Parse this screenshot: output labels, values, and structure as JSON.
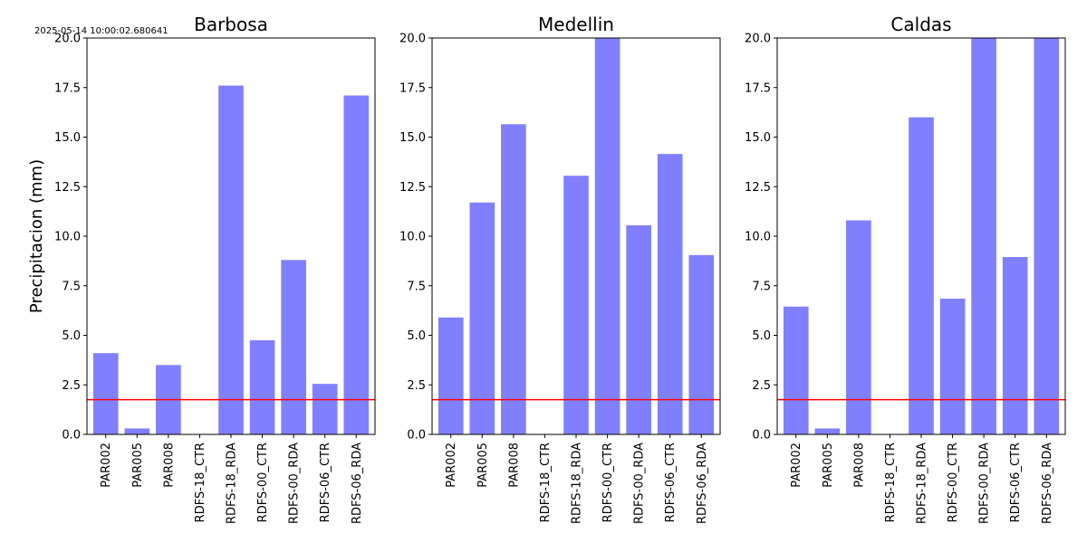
{
  "timestamp": "2025-05-14 10:00:02.680641",
  "colors": {
    "bar": "#8080ff",
    "threshold": "#ff0000",
    "axis": "#000000"
  },
  "chart_data": [
    {
      "type": "bar",
      "title": "Barbosa",
      "ylabel": "Precipitacion (mm)",
      "xlabel": "",
      "ylim": [
        0,
        20
      ],
      "yticks": [
        "0.0",
        "2.5",
        "5.0",
        "7.5",
        "10.0",
        "12.5",
        "15.0",
        "17.5",
        "20.0"
      ],
      "categories": [
        "PAR002",
        "PAR005",
        "PAR008",
        "RDFS-18_CTR",
        "RDFS-18_RDA",
        "RDFS-00_CTR",
        "RDFS-00_RDA",
        "RDFS-06_CTR",
        "RDFS-06_RDA"
      ],
      "values": [
        4.1,
        0.3,
        3.5,
        0.0,
        17.6,
        4.75,
        8.8,
        2.55,
        17.1
      ],
      "threshold": 1.75
    },
    {
      "type": "bar",
      "title": "Medellin",
      "ylabel": "",
      "xlabel": "",
      "ylim": [
        0,
        20
      ],
      "yticks": [
        "0.0",
        "2.5",
        "5.0",
        "7.5",
        "10.0",
        "12.5",
        "15.0",
        "17.5",
        "20.0"
      ],
      "categories": [
        "PAR002",
        "PAR005",
        "PAR008",
        "RDFS-18_CTR",
        "RDFS-18_RDA",
        "RDFS-00_CTR",
        "RDFS-00_RDA",
        "RDFS-06_CTR",
        "RDFS-06_RDA"
      ],
      "values": [
        5.9,
        11.7,
        15.65,
        0.0,
        13.05,
        20.0,
        10.55,
        14.15,
        9.05
      ],
      "threshold": 1.75
    },
    {
      "type": "bar",
      "title": "Caldas",
      "ylabel": "",
      "xlabel": "",
      "ylim": [
        0,
        20
      ],
      "yticks": [
        "0.0",
        "2.5",
        "5.0",
        "7.5",
        "10.0",
        "12.5",
        "15.0",
        "17.5",
        "20.0"
      ],
      "categories": [
        "PAR002",
        "PAR005",
        "PAR008",
        "RDFS-18_CTR",
        "RDFS-18_RDA",
        "RDFS-00_CTR",
        "RDFS-00_RDA",
        "RDFS-06_CTR",
        "RDFS-06_RDA"
      ],
      "values": [
        6.45,
        0.3,
        10.8,
        0.0,
        16.0,
        6.85,
        20.0,
        8.95,
        20.0
      ],
      "threshold": 1.75
    }
  ]
}
